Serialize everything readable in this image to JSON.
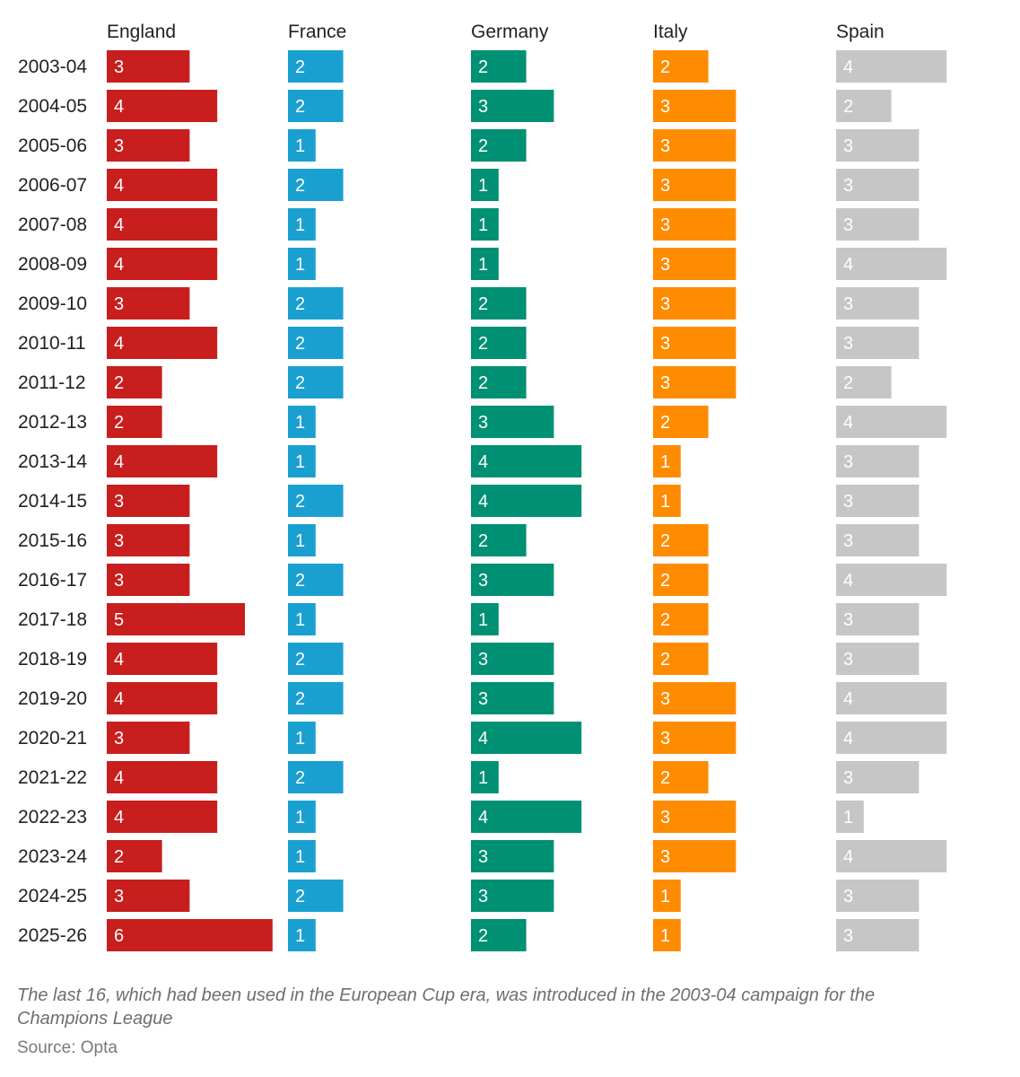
{
  "chart_data": {
    "type": "bar",
    "orientation": "horizontal",
    "layout": "small-multiples",
    "categories": [
      "2003-04",
      "2004-05",
      "2005-06",
      "2006-07",
      "2007-08",
      "2008-09",
      "2009-10",
      "2010-11",
      "2011-12",
      "2012-13",
      "2013-14",
      "2014-15",
      "2015-16",
      "2016-17",
      "2017-18",
      "2018-19",
      "2019-20",
      "2020-21",
      "2021-22",
      "2022-23",
      "2023-24",
      "2024-25",
      "2025-26"
    ],
    "series": [
      {
        "name": "England",
        "color": "#c81e1e",
        "label_color": "#ffffff",
        "values": [
          3,
          4,
          3,
          4,
          4,
          4,
          3,
          4,
          2,
          2,
          4,
          3,
          3,
          3,
          5,
          4,
          4,
          3,
          4,
          4,
          2,
          3,
          6
        ]
      },
      {
        "name": "France",
        "color": "#1aa0d0",
        "label_color": "#ffffff",
        "values": [
          2,
          2,
          1,
          2,
          1,
          1,
          2,
          2,
          2,
          1,
          1,
          2,
          1,
          2,
          1,
          2,
          2,
          1,
          2,
          1,
          1,
          2,
          1
        ]
      },
      {
        "name": "Germany",
        "color": "#009073",
        "label_color": "#ffffff",
        "values": [
          2,
          3,
          2,
          1,
          1,
          1,
          2,
          2,
          2,
          3,
          4,
          4,
          2,
          3,
          1,
          3,
          3,
          4,
          1,
          4,
          3,
          3,
          2
        ]
      },
      {
        "name": "Italy",
        "color": "#ff8c00",
        "label_color": "#ffffff",
        "values": [
          2,
          3,
          3,
          3,
          3,
          3,
          3,
          3,
          3,
          2,
          1,
          1,
          2,
          2,
          2,
          2,
          3,
          3,
          2,
          3,
          3,
          1,
          1
        ]
      },
      {
        "name": "Spain",
        "color": "#c6c6c6",
        "label_color": "#3a3a3a",
        "values": [
          4,
          2,
          3,
          3,
          3,
          4,
          3,
          3,
          2,
          4,
          3,
          3,
          3,
          4,
          3,
          3,
          4,
          4,
          3,
          1,
          4,
          3,
          3
        ]
      }
    ],
    "title": "",
    "xlabel": "",
    "ylabel": "",
    "grid": false,
    "legend": "none"
  },
  "footnote": "The last 16, which had been used in the European Cup era, was introduced in the 2003-04 campaign for the Champions League",
  "source": "Source: Opta"
}
